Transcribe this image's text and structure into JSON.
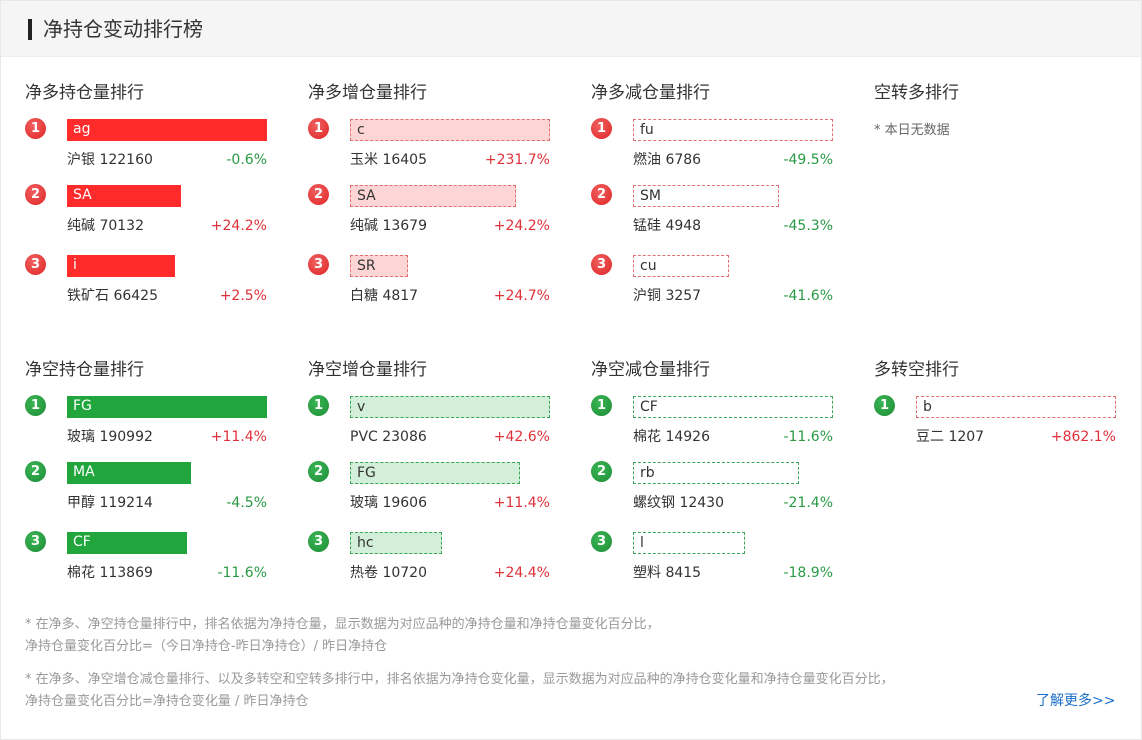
{
  "header": {
    "title": "净持仓变动排行榜"
  },
  "sections": [
    {
      "title": "净多持仓量排行",
      "items": [
        {
          "rank": "1",
          "code": "ag",
          "name": "沪银 122160",
          "pct": "-0.6%",
          "dir": "down",
          "bar_fraction": 1.0
        },
        {
          "rank": "2",
          "code": "SA",
          "name": "纯碱 70132",
          "pct": "+24.2%",
          "dir": "up",
          "bar_fraction": 0.57
        },
        {
          "rank": "3",
          "code": "i",
          "name": "铁矿石 66425",
          "pct": "+2.5%",
          "dir": "up",
          "bar_fraction": 0.54
        }
      ]
    },
    {
      "title": "净多增仓量排行",
      "items": [
        {
          "rank": "1",
          "code": "c",
          "name": "玉米 16405",
          "pct": "+231.7%",
          "dir": "up",
          "bar_fraction": 1.0
        },
        {
          "rank": "2",
          "code": "SA",
          "name": "纯碱 13679",
          "pct": "+24.2%",
          "dir": "up",
          "bar_fraction": 0.83
        },
        {
          "rank": "3",
          "code": "SR",
          "name": "白糖 4817",
          "pct": "+24.7%",
          "dir": "up",
          "bar_fraction": 0.29
        }
      ]
    },
    {
      "title": "净多减仓量排行",
      "items": [
        {
          "rank": "1",
          "code": "fu",
          "name": "燃油 6786",
          "pct": "-49.5%",
          "dir": "down",
          "bar_fraction": 1.0
        },
        {
          "rank": "2",
          "code": "SM",
          "name": "锰硅 4948",
          "pct": "-45.3%",
          "dir": "down",
          "bar_fraction": 0.73
        },
        {
          "rank": "3",
          "code": "cu",
          "name": "沪铜 3257",
          "pct": "-41.6%",
          "dir": "down",
          "bar_fraction": 0.48
        }
      ]
    },
    {
      "title": "空转多排行",
      "empty_text": "* 本日无数据",
      "items": []
    },
    {
      "title": "净空持仓量排行",
      "items": [
        {
          "rank": "1",
          "code": "FG",
          "name": "玻璃 190992",
          "pct": "+11.4%",
          "dir": "up",
          "bar_fraction": 1.0
        },
        {
          "rank": "2",
          "code": "MA",
          "name": "甲醇 119214",
          "pct": "-4.5%",
          "dir": "down",
          "bar_fraction": 0.62
        },
        {
          "rank": "3",
          "code": "CF",
          "name": "棉花 113869",
          "pct": "-11.6%",
          "dir": "down",
          "bar_fraction": 0.6
        }
      ]
    },
    {
      "title": "净空增仓量排行",
      "items": [
        {
          "rank": "1",
          "code": "v",
          "name": "PVC 23086",
          "pct": "+42.6%",
          "dir": "up",
          "bar_fraction": 1.0
        },
        {
          "rank": "2",
          "code": "FG",
          "name": "玻璃 19606",
          "pct": "+11.4%",
          "dir": "up",
          "bar_fraction": 0.85
        },
        {
          "rank": "3",
          "code": "hc",
          "name": "热卷 10720",
          "pct": "+24.4%",
          "dir": "up",
          "bar_fraction": 0.46
        }
      ]
    },
    {
      "title": "净空减仓量排行",
      "items": [
        {
          "rank": "1",
          "code": "CF",
          "name": "棉花 14926",
          "pct": "-11.6%",
          "dir": "down",
          "bar_fraction": 1.0
        },
        {
          "rank": "2",
          "code": "rb",
          "name": "螺纹钢 12430",
          "pct": "-21.4%",
          "dir": "down",
          "bar_fraction": 0.83
        },
        {
          "rank": "3",
          "code": "l",
          "name": "塑料 8415",
          "pct": "-18.9%",
          "dir": "down",
          "bar_fraction": 0.56
        }
      ]
    },
    {
      "title": "多转空排行",
      "items": [
        {
          "rank": "1",
          "code": "b",
          "name": "豆二 1207",
          "pct": "+862.1%",
          "dir": "up",
          "bar_fraction": 1.0
        }
      ]
    }
  ],
  "notes": [
    "* 在净多、净空持仓量排行中，排名依据为净持仓量，显示数据为对应品种的净持仓量和净持仓量变化百分比，",
    "净持仓量变化百分比=（今日净持仓-昨日净持仓）/ 昨日净持仓",
    "* 在净多、净空增仓减仓量排行、以及多转空和空转多排行中，排名依据为净持仓变化量，显示数据为对应品种的净持仓变化量和净持仓量变化百分比，",
    "净持仓量变化百分比=净持仓变化量 / 昨日净持仓"
  ],
  "more_link": "了解更多>>",
  "colors": {
    "up": "#e0313a",
    "down": "#2a9a45",
    "solid_red": "#ff2a2a",
    "solid_green": "#20a63c",
    "link": "#1a6fc8"
  }
}
